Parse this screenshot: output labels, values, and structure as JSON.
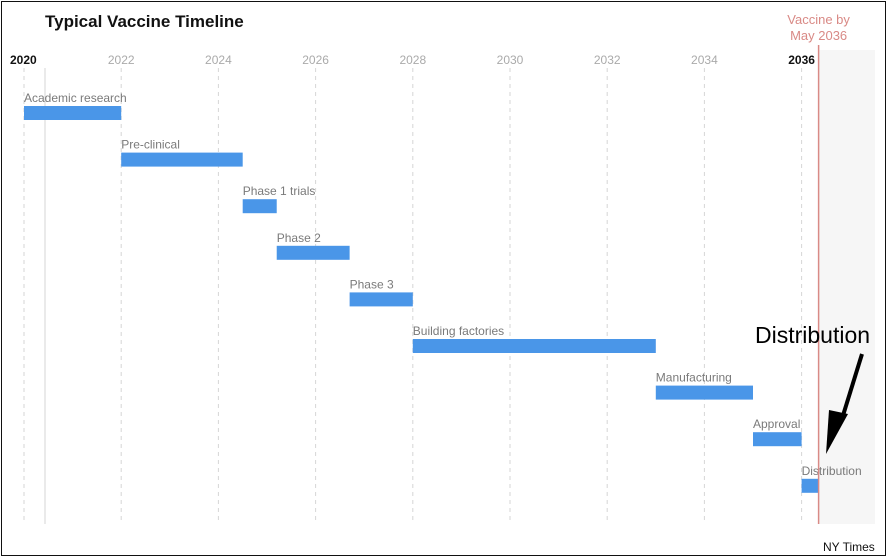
{
  "chart_data": {
    "type": "gantt",
    "title": "Typical Vaccine Timeline",
    "x_axis": {
      "range": [
        2020,
        2037.2
      ],
      "ticks": [
        "2020",
        "2022",
        "2024",
        "2026",
        "2028",
        "2030",
        "2032",
        "2034",
        "2036"
      ],
      "bold_ticks": [
        "2020",
        "2036"
      ]
    },
    "tasks": [
      {
        "label": "Academic research",
        "start": 2020.0,
        "end": 2022.0
      },
      {
        "label": "Pre-clinical",
        "start": 2022.0,
        "end": 2024.5
      },
      {
        "label": "Phase 1 trials",
        "start": 2024.5,
        "end": 2025.2
      },
      {
        "label": "Phase 2",
        "start": 2025.2,
        "end": 2026.7
      },
      {
        "label": "Phase 3",
        "start": 2026.7,
        "end": 2028.0
      },
      {
        "label": "Building factories",
        "start": 2028.0,
        "end": 2033.0
      },
      {
        "label": "Manufacturing",
        "start": 2033.0,
        "end": 2035.0
      },
      {
        "label": "Approval",
        "start": 2035.0,
        "end": 2036.0
      },
      {
        "label": "Distribution",
        "start": 2036.0,
        "end": 2036.35
      }
    ],
    "marker": {
      "x": 2036.35,
      "label_line1": "Vaccine by",
      "label_line2": "May 2036"
    },
    "annotation": "Distribution",
    "source": "NY Times",
    "colors": {
      "bar": "#4a96e8",
      "marker": "#d98a86",
      "shade": "#f6f6f6",
      "grid": "#d6d6d6"
    }
  }
}
